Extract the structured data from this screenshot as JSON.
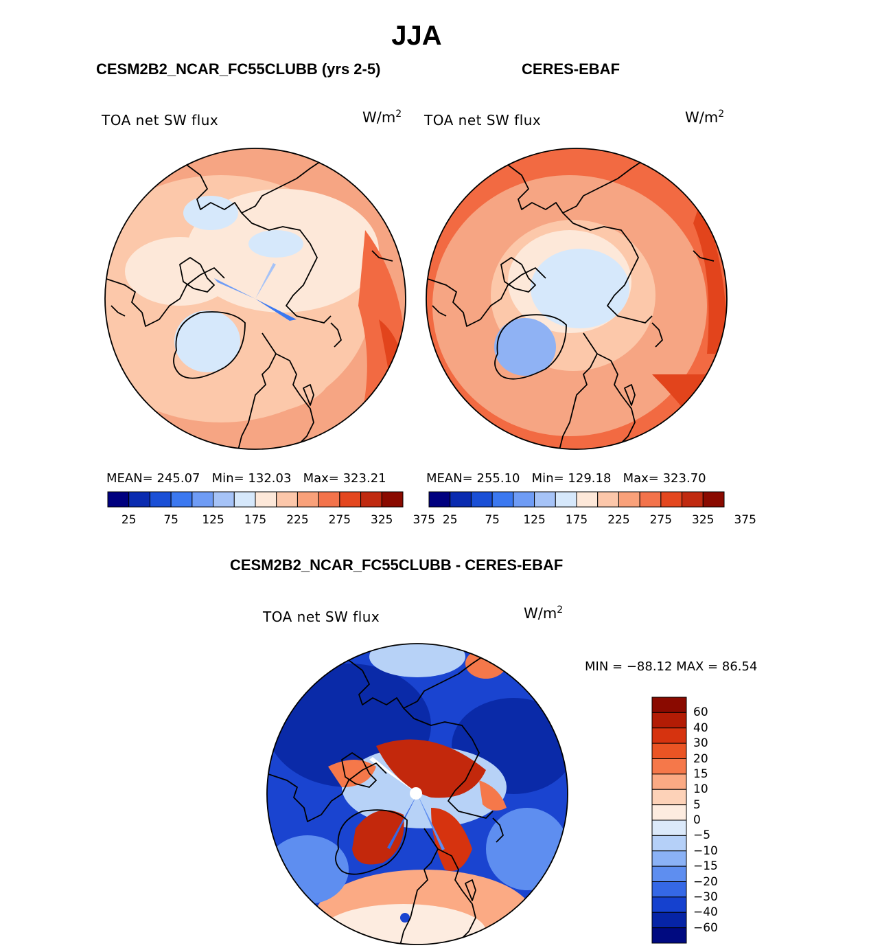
{
  "title": "JJA",
  "panels": [
    {
      "id": "model",
      "heading": "CESM2B2_NCAR_FC55CLUBB (yrs 2-5)",
      "variable": "TOA net SW flux",
      "units_base": "W/m",
      "units_exp": "2",
      "mean_label": "MEAN=",
      "mean": "245.07",
      "min_label": "Min=",
      "min": "132.03",
      "max_label": "Max=",
      "max": "323.21"
    },
    {
      "id": "obs",
      "heading": "CERES-EBAF",
      "variable": "TOA net SW flux",
      "units_base": "W/m",
      "units_exp": "2",
      "mean_label": "MEAN=",
      "mean": "255.10",
      "min_label": "Min=",
      "min": "129.18",
      "max_label": "Max=",
      "max": "323.70"
    }
  ],
  "colorbar_top": {
    "ticks": [
      "25",
      "75",
      "125",
      "175",
      "225",
      "275",
      "325",
      "375"
    ],
    "colors": [
      "#00007f",
      "#0a2bb0",
      "#1a4fd6",
      "#3b78f0",
      "#6f9cf5",
      "#a6c3f7",
      "#d6e8fb",
      "#fde8d9",
      "#fcc7aa",
      "#f9a17a",
      "#f3734b",
      "#e4471f",
      "#c02a10",
      "#8a0a00"
    ]
  },
  "difference": {
    "heading": "CESM2B2_NCAR_FC55CLUBB - CERES-EBAF",
    "variable": "TOA net SW flux",
    "units_base": "W/m",
    "units_exp": "2",
    "minmax_text": "MIN = −88.12 MAX =  86.54",
    "colorbar": {
      "labels": [
        "60",
        "40",
        "30",
        "20",
        "15",
        "10",
        "5",
        "0",
        "−5",
        "−10",
        "−15",
        "−20",
        "−30",
        "−40",
        "−60"
      ],
      "colors": [
        "#8a0a00",
        "#b31c05",
        "#d6330f",
        "#ea5424",
        "#f5784a",
        "#fbaa84",
        "#fdd2b8",
        "#fdece0",
        "#dbe9fa",
        "#b5d0f8",
        "#8bb2f6",
        "#5e8ef0",
        "#3568e6",
        "#1541cf",
        "#0624a6",
        "#000a80"
      ]
    }
  },
  "map_colors": {
    "coastline": "#000000",
    "flux_bg": "#f6a583",
    "flux_light": "#fcc8aa",
    "flux_cream": "#fde8d9",
    "flux_dark": "#f26a42",
    "flux_deep": "#e2441c",
    "ice_light": "#d6e8fb",
    "ice_mid": "#8fb2f4",
    "diff_blue": "#1a44d0",
    "diff_navy": "#0a2aa8",
    "diff_red": "#c3280c",
    "diff_light": "#b7d2f7"
  }
}
